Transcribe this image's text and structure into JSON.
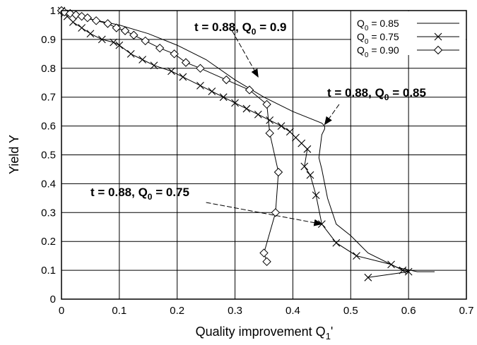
{
  "chart_data": {
    "type": "line",
    "xlabel": "Quality improvement  Q",
    "xlabel_sub": "1",
    "xlabel_suffix": "'",
    "ylabel": "Yield  Y",
    "xlim": [
      0,
      0.7
    ],
    "ylim": [
      0,
      1
    ],
    "x_ticks": [
      "0",
      "0.1",
      "0.2",
      "0.3",
      "0.4",
      "0.5",
      "0.6",
      "0.7"
    ],
    "y_ticks": [
      "0",
      "0.1",
      "0.2",
      "0.3",
      "0.4",
      "0.5",
      "0.6",
      "0.7",
      "0.8",
      "0.9",
      "1"
    ],
    "grid": true,
    "legend_position": "top-right",
    "series": [
      {
        "name_main": "Q",
        "name_sub": "0",
        "name_rest": " = 0.85",
        "marker": "none",
        "points": [
          [
            0.0,
            1.0
          ],
          [
            0.01,
            0.99
          ],
          [
            0.05,
            0.97
          ],
          [
            0.1,
            0.95
          ],
          [
            0.15,
            0.92
          ],
          [
            0.2,
            0.88
          ],
          [
            0.25,
            0.83
          ],
          [
            0.3,
            0.76
          ],
          [
            0.35,
            0.7
          ],
          [
            0.4,
            0.65
          ],
          [
            0.45,
            0.61
          ],
          [
            0.455,
            0.6
          ],
          [
            0.455,
            0.59
          ],
          [
            0.45,
            0.57
          ],
          [
            0.445,
            0.49
          ],
          [
            0.45,
            0.45
          ],
          [
            0.46,
            0.35
          ],
          [
            0.475,
            0.26
          ],
          [
            0.5,
            0.22
          ],
          [
            0.53,
            0.16
          ],
          [
            0.58,
            0.11
          ],
          [
            0.615,
            0.095
          ],
          [
            0.645,
            0.095
          ]
        ]
      },
      {
        "name_main": "Q",
        "name_sub": "0",
        "name_rest": " = 0.75",
        "marker": "x",
        "points": [
          [
            0.0,
            1.0
          ],
          [
            0.005,
            0.99
          ],
          [
            0.01,
            0.98
          ],
          [
            0.02,
            0.96
          ],
          [
            0.035,
            0.94
          ],
          [
            0.05,
            0.92
          ],
          [
            0.07,
            0.9
          ],
          [
            0.09,
            0.89
          ],
          [
            0.1,
            0.88
          ],
          [
            0.12,
            0.85
          ],
          [
            0.14,
            0.83
          ],
          [
            0.16,
            0.81
          ],
          [
            0.19,
            0.79
          ],
          [
            0.21,
            0.77
          ],
          [
            0.24,
            0.74
          ],
          [
            0.26,
            0.72
          ],
          [
            0.28,
            0.7
          ],
          [
            0.3,
            0.68
          ],
          [
            0.32,
            0.66
          ],
          [
            0.34,
            0.64
          ],
          [
            0.36,
            0.62
          ],
          [
            0.38,
            0.6
          ],
          [
            0.395,
            0.58
          ],
          [
            0.405,
            0.56
          ],
          [
            0.415,
            0.54
          ],
          [
            0.425,
            0.52
          ],
          [
            0.42,
            0.46
          ],
          [
            0.43,
            0.43
          ],
          [
            0.44,
            0.36
          ],
          [
            0.45,
            0.26
          ],
          [
            0.475,
            0.195
          ],
          [
            0.51,
            0.15
          ],
          [
            0.57,
            0.12
          ],
          [
            0.59,
            0.1
          ],
          [
            0.6,
            0.095
          ],
          [
            0.53,
            0.075
          ]
        ]
      },
      {
        "name_main": "Q",
        "name_sub": "0",
        "name_rest": " = 0.90",
        "marker": "diamond",
        "points": [
          [
            0.0,
            1.0
          ],
          [
            0.005,
            0.995
          ],
          [
            0.015,
            0.99
          ],
          [
            0.025,
            0.985
          ],
          [
            0.035,
            0.98
          ],
          [
            0.045,
            0.975
          ],
          [
            0.06,
            0.965
          ],
          [
            0.08,
            0.955
          ],
          [
            0.095,
            0.94
          ],
          [
            0.11,
            0.93
          ],
          [
            0.125,
            0.915
          ],
          [
            0.145,
            0.895
          ],
          [
            0.17,
            0.87
          ],
          [
            0.195,
            0.85
          ],
          [
            0.215,
            0.82
          ],
          [
            0.24,
            0.8
          ],
          [
            0.285,
            0.76
          ],
          [
            0.325,
            0.725
          ],
          [
            0.355,
            0.675
          ],
          [
            0.36,
            0.575
          ],
          [
            0.375,
            0.44
          ],
          [
            0.37,
            0.3
          ],
          [
            0.35,
            0.16
          ],
          [
            0.355,
            0.13
          ]
        ]
      }
    ],
    "annotations": [
      {
        "text_main": "t = 0.88, Q",
        "text_sub": "0",
        "text_rest": " = 0.9",
        "from": [
          0.295,
          0.93
        ],
        "to": [
          0.34,
          0.77
        ]
      },
      {
        "text_main": "t = 0.88, Q",
        "text_sub": "0",
        "text_rest": " = 0.85",
        "from": [
          0.48,
          0.675
        ],
        "to": [
          0.455,
          0.605
        ]
      },
      {
        "text_main": "t = 0.88, Q",
        "text_sub": "0",
        "text_rest": " = 0.75",
        "from": [
          0.25,
          0.335
        ],
        "to": [
          0.45,
          0.26
        ]
      }
    ]
  }
}
